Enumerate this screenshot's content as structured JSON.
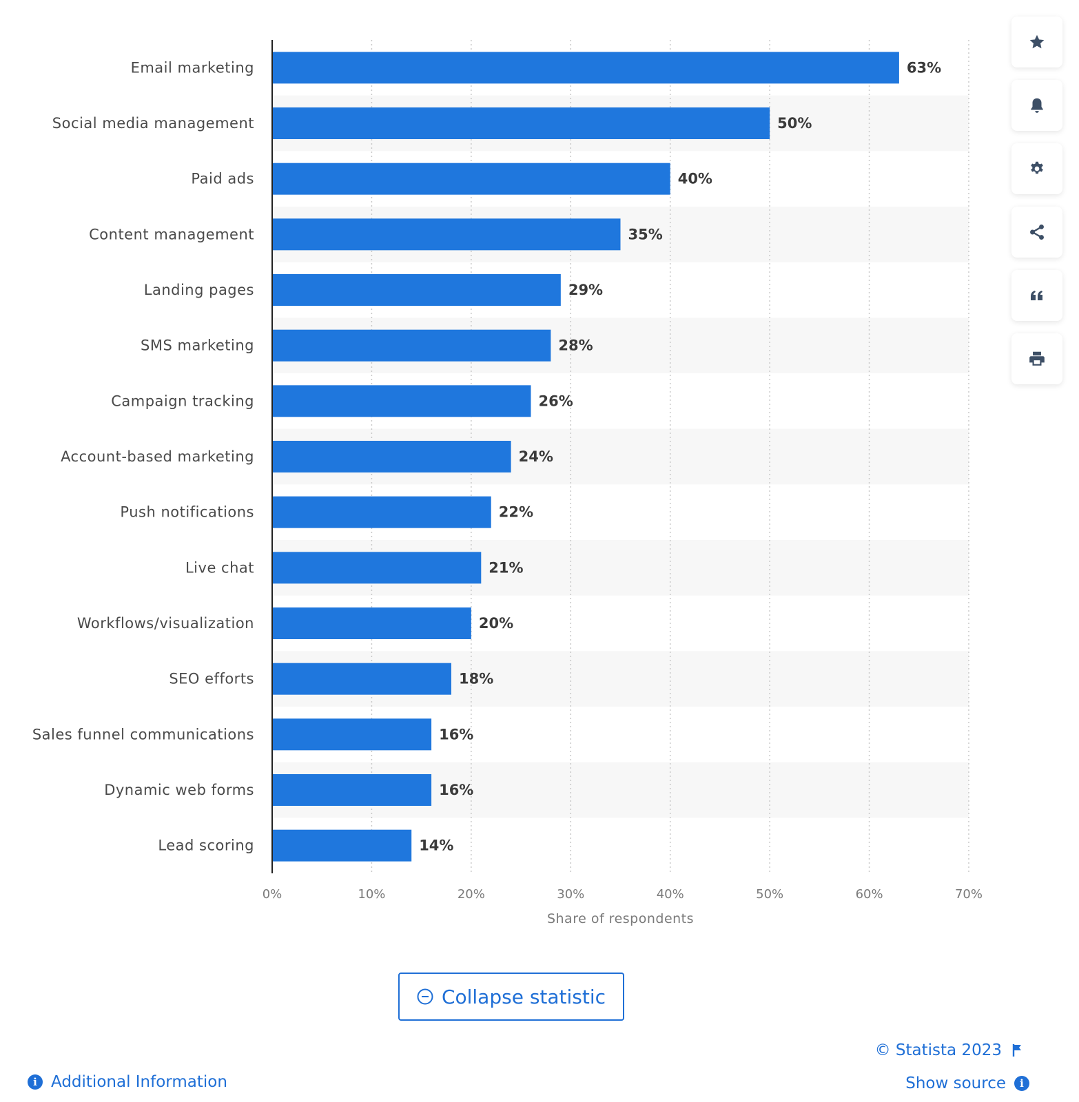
{
  "chart_data": {
    "type": "bar",
    "orientation": "horizontal",
    "categories": [
      "Email marketing",
      "Social media management",
      "Paid ads",
      "Content management",
      "Landing pages",
      "SMS marketing",
      "Campaign tracking",
      "Account-based marketing",
      "Push notifications",
      "Live chat",
      "Workflows/visualization",
      "SEO efforts",
      "Sales funnel communications",
      "Dynamic web forms",
      "Lead scoring"
    ],
    "values": [
      63,
      50,
      40,
      35,
      29,
      28,
      26,
      24,
      22,
      21,
      20,
      18,
      16,
      16,
      14
    ],
    "value_labels": [
      "63%",
      "50%",
      "40%",
      "35%",
      "29%",
      "28%",
      "26%",
      "24%",
      "22%",
      "21%",
      "20%",
      "18%",
      "16%",
      "16%",
      "14%"
    ],
    "xlim": [
      0,
      70
    ],
    "ticks": [
      0,
      10,
      20,
      30,
      40,
      50,
      60,
      70
    ],
    "tick_labels": [
      "0%",
      "10%",
      "20%",
      "30%",
      "40%",
      "50%",
      "60%",
      "70%"
    ],
    "xlabel": "Share of respondents",
    "grid": "vertical-dotted",
    "row_stripes": true
  },
  "colors": {
    "bar": "#1f77dd",
    "accent": "#1f6fd6",
    "toolbar_icon": "#3d4f66",
    "stripe": "#f7f7f7"
  },
  "toolbar": [
    {
      "icon": "star-icon"
    },
    {
      "icon": "bell-icon"
    },
    {
      "icon": "gear-icon"
    },
    {
      "icon": "share-icon"
    },
    {
      "icon": "quote-icon"
    },
    {
      "icon": "print-icon"
    }
  ],
  "collapse_button": {
    "label": "Collapse statistic"
  },
  "footer": {
    "copyright": "© Statista 2023",
    "show_source": "Show source",
    "additional_information": "Additional Information"
  }
}
